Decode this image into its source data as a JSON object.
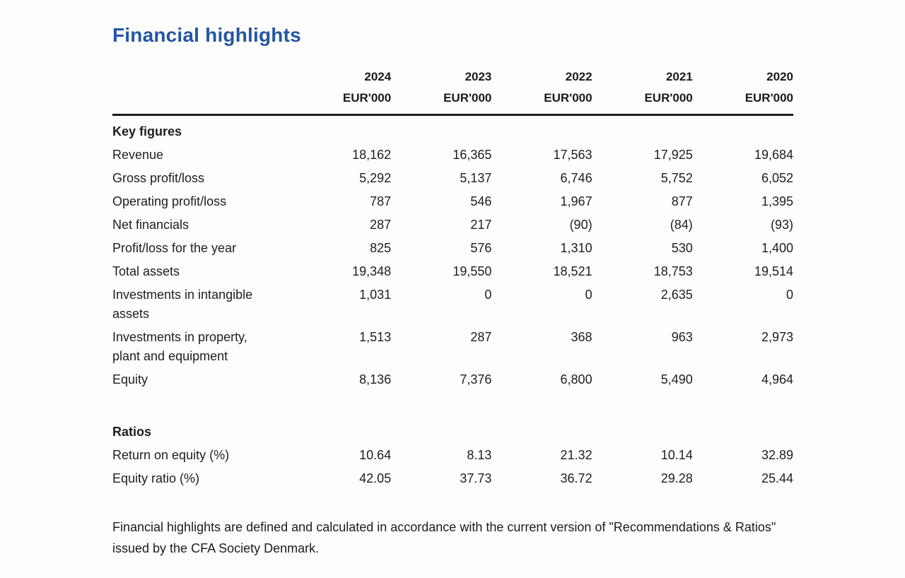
{
  "page": {
    "title": "Financial highlights",
    "title_color": "#2456a4",
    "footnote": "Financial highlights are defined and calculated in accordance with the current version of \"Recommendations & Ratios\" issued by the CFA Society Denmark."
  },
  "table": {
    "years": [
      "2024",
      "2023",
      "2022",
      "2021",
      "2020"
    ],
    "unit_label": "EUR'000",
    "sections": [
      {
        "heading": "Key figures",
        "rows": [
          {
            "label": "Revenue",
            "values": [
              "18,162",
              "16,365",
              "17,563",
              "17,925",
              "19,684"
            ]
          },
          {
            "label": "Gross profit/loss",
            "values": [
              "5,292",
              "5,137",
              "6,746",
              "5,752",
              "6,052"
            ]
          },
          {
            "label": "Operating profit/loss",
            "values": [
              "787",
              "546",
              "1,967",
              "877",
              "1,395"
            ]
          },
          {
            "label": "Net financials",
            "values": [
              "287",
              "217",
              "(90)",
              "(84)",
              "(93)"
            ]
          },
          {
            "label": "Profit/loss for the year",
            "values": [
              "825",
              "576",
              "1,310",
              "530",
              "1,400"
            ]
          },
          {
            "label": "Total assets",
            "values": [
              "19,348",
              "19,550",
              "18,521",
              "18,753",
              "19,514"
            ]
          },
          {
            "label": "Investments in intangible assets",
            "values": [
              "1,031",
              "0",
              "0",
              "2,635",
              "0"
            ]
          },
          {
            "label": "Investments in property, plant and equipment",
            "values": [
              "1,513",
              "287",
              "368",
              "963",
              "2,973"
            ]
          },
          {
            "label": "Equity",
            "values": [
              "8,136",
              "7,376",
              "6,800",
              "5,490",
              "4,964"
            ]
          }
        ]
      },
      {
        "heading": "Ratios",
        "rows": [
          {
            "label": "Return on equity (%)",
            "values": [
              "10.64",
              "8.13",
              "21.32",
              "10.14",
              "32.89"
            ]
          },
          {
            "label": "Equity ratio (%)",
            "values": [
              "42.05",
              "37.73",
              "36.72",
              "29.28",
              "25.44"
            ]
          }
        ]
      }
    ]
  }
}
